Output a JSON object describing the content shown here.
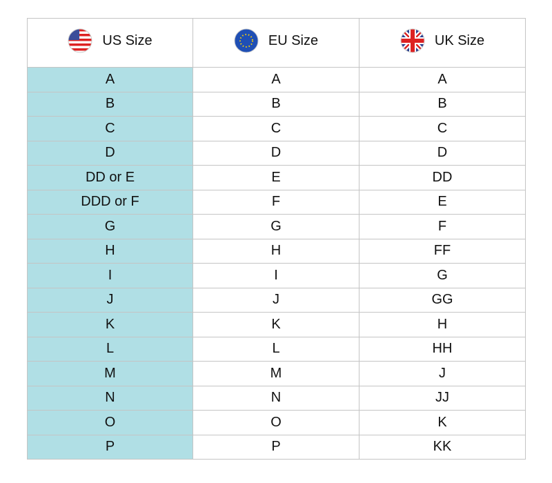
{
  "table": {
    "headers": [
      "US Size",
      "EU Size",
      "UK Size"
    ],
    "rows": [
      [
        "A",
        "A",
        "A"
      ],
      [
        "B",
        "B",
        "B"
      ],
      [
        "C",
        "C",
        "C"
      ],
      [
        "D",
        "D",
        "D"
      ],
      [
        "DD or E",
        "E",
        "DD"
      ],
      [
        "DDD or F",
        "F",
        "E"
      ],
      [
        "G",
        "G",
        "F"
      ],
      [
        "H",
        "H",
        "FF"
      ],
      [
        "I",
        "I",
        "G"
      ],
      [
        "J",
        "J",
        "GG"
      ],
      [
        "K",
        "K",
        "H"
      ],
      [
        "L",
        "L",
        "HH"
      ],
      [
        "M",
        "M",
        "J"
      ],
      [
        "N",
        "N",
        "JJ"
      ],
      [
        "O",
        "O",
        "K"
      ],
      [
        "P",
        "P",
        "KK"
      ]
    ]
  }
}
